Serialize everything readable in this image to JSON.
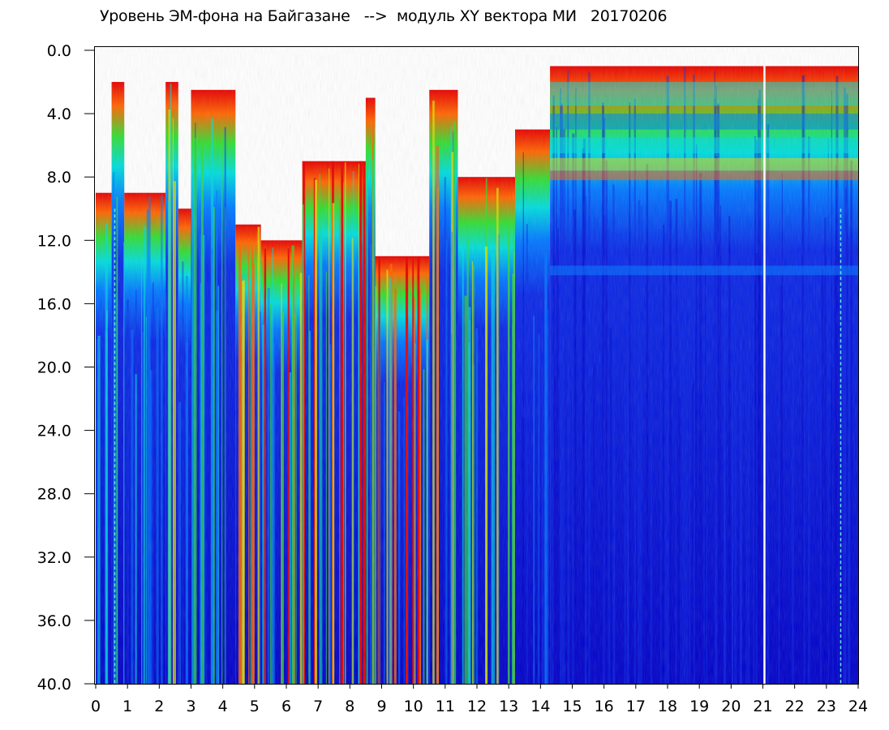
{
  "chart_data": {
    "type": "heatmap",
    "title": "Уровень ЭМ-фона на Байгазане   -->  модуль XY вектора МИ   20170206",
    "xlabel": "",
    "ylabel": "",
    "xlim": [
      0,
      24
    ],
    "ylim": [
      40.0,
      0.0
    ],
    "y_inverted": true,
    "x_ticks": [
      "0",
      "1",
      "2",
      "3",
      "4",
      "5",
      "6",
      "7",
      "8",
      "9",
      "10",
      "11",
      "12",
      "13",
      "14",
      "15",
      "16",
      "17",
      "18",
      "19",
      "20",
      "21",
      "22",
      "23",
      "24"
    ],
    "y_ticks": [
      "0.0",
      "4.0",
      "8.0",
      "12.0",
      "16.0",
      "20.0",
      "24.0",
      "28.0",
      "32.0",
      "36.0",
      "40.0"
    ],
    "colormap": [
      "#0000c8",
      "#0a28e6",
      "#0078ff",
      "#00dcdc",
      "#32dc32",
      "#dcdc00",
      "#ff6400",
      "#e60000"
    ],
    "background_color": "#ffffff",
    "grid": false,
    "legend": "none",
    "bands": [
      {
        "x_start": 0.0,
        "x_end": 0.5,
        "level": 0.35,
        "edge": 9.0
      },
      {
        "x_start": 0.5,
        "x_end": 0.9,
        "level": 0.45,
        "edge": 2.0
      },
      {
        "x_start": 0.9,
        "x_end": 2.2,
        "level": 0.3,
        "edge": 9.0
      },
      {
        "x_start": 2.2,
        "x_end": 2.6,
        "level": 0.5,
        "edge": 2.0
      },
      {
        "x_start": 2.6,
        "x_end": 3.0,
        "level": 0.3,
        "edge": 10.0
      },
      {
        "x_start": 3.0,
        "x_end": 4.4,
        "level": 0.45,
        "edge": 2.5
      },
      {
        "x_start": 4.4,
        "x_end": 5.2,
        "level": 0.55,
        "edge": 11.0
      },
      {
        "x_start": 5.2,
        "x_end": 6.5,
        "level": 0.65,
        "edge": 12.0
      },
      {
        "x_start": 6.5,
        "x_end": 8.5,
        "level": 0.8,
        "edge": 7.0
      },
      {
        "x_start": 8.5,
        "x_end": 8.8,
        "level": 0.6,
        "edge": 3.0
      },
      {
        "x_start": 8.8,
        "x_end": 10.5,
        "level": 0.85,
        "edge": 13.0
      },
      {
        "x_start": 10.5,
        "x_end": 11.4,
        "level": 0.55,
        "edge": 2.5
      },
      {
        "x_start": 11.4,
        "x_end": 13.2,
        "level": 0.5,
        "edge": 8.0
      },
      {
        "x_start": 13.2,
        "x_end": 14.3,
        "level": 0.25,
        "edge": 5.0
      },
      {
        "x_start": 14.3,
        "x_end": 24.0,
        "level": 0.15,
        "edge": 1.0
      }
    ],
    "vertical_lines_white": [
      21.05
    ],
    "dashed_lines_cyan": [
      0.6,
      23.45
    ]
  }
}
